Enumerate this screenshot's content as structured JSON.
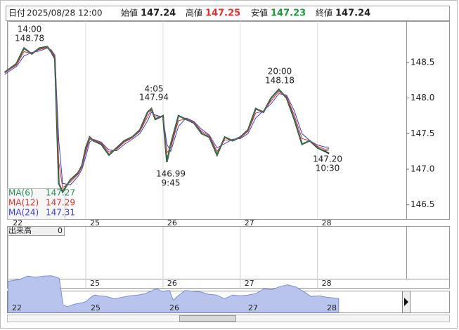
{
  "header": {
    "date_label": "日付",
    "date": "2025/08/28 12:00",
    "open_label": "始値",
    "open": "147.24",
    "high_label": "高値",
    "high": "147.25",
    "low_label": "安値",
    "low": "147.23",
    "close_label": "終値",
    "close": "147.24"
  },
  "chart_data": {
    "type": "line",
    "x": [
      -0.05,
      0,
      0.1,
      0.2,
      0.3,
      0.4,
      0.5,
      0.55,
      0.6,
      0.65,
      0.7,
      0.8,
      0.9,
      0.95,
      1.0,
      1.05,
      1.1,
      1.2,
      1.3,
      1.4,
      1.5,
      1.6,
      1.7,
      1.8,
      1.85,
      1.9,
      2.0,
      2.05,
      2.1,
      2.2,
      2.3,
      2.4,
      2.5,
      2.6,
      2.7,
      2.8,
      2.9,
      3.0,
      3.1,
      3.2,
      3.3,
      3.4,
      3.5,
      3.6,
      3.7,
      3.8,
      3.9,
      4.0,
      4.1,
      4.15
    ],
    "values": [
      148.36,
      148.4,
      148.48,
      148.7,
      148.62,
      148.7,
      148.72,
      148.65,
      148.55,
      146.8,
      146.68,
      146.85,
      146.95,
      147.05,
      147.3,
      147.45,
      147.4,
      147.35,
      147.2,
      147.3,
      147.4,
      147.45,
      147.55,
      147.8,
      147.85,
      147.7,
      147.75,
      147.1,
      147.35,
      147.75,
      147.7,
      147.65,
      147.5,
      147.45,
      147.2,
      147.45,
      147.4,
      147.45,
      147.55,
      147.85,
      147.8,
      148.0,
      148.12,
      148.0,
      147.7,
      147.35,
      147.4,
      147.3,
      147.25,
      147.22
    ],
    "color": "#333333",
    "series": [
      {
        "name": "MA(6)",
        "legend_value": "147.27",
        "color": "#2e8b57",
        "values": [
          148.36,
          148.4,
          148.48,
          148.7,
          148.62,
          148.7,
          148.72,
          148.65,
          148.55,
          146.8,
          146.68,
          146.85,
          146.95,
          147.05,
          147.3,
          147.45,
          147.4,
          147.35,
          147.2,
          147.3,
          147.4,
          147.45,
          147.55,
          147.8,
          147.85,
          147.7,
          147.75,
          147.1,
          147.35,
          147.75,
          147.7,
          147.65,
          147.5,
          147.45,
          147.2,
          147.45,
          147.4,
          147.45,
          147.55,
          147.85,
          147.8,
          148.0,
          148.12,
          148.0,
          147.7,
          147.35,
          147.4,
          147.3,
          147.26,
          147.27
        ]
      },
      {
        "name": "MA(12)",
        "legend_value": "147.29",
        "color": "#e0302c",
        "values": [
          148.35,
          148.39,
          148.46,
          148.65,
          148.63,
          148.68,
          148.71,
          148.67,
          148.58,
          147.1,
          146.74,
          146.82,
          146.93,
          147.03,
          147.24,
          147.42,
          147.41,
          147.37,
          147.24,
          147.28,
          147.38,
          147.44,
          147.53,
          147.74,
          147.83,
          147.73,
          147.74,
          147.23,
          147.3,
          147.68,
          147.71,
          147.66,
          147.53,
          147.47,
          147.25,
          147.41,
          147.41,
          147.44,
          147.53,
          147.79,
          147.81,
          147.96,
          148.09,
          148.02,
          147.76,
          147.43,
          147.4,
          147.32,
          147.28,
          147.29
        ]
      },
      {
        "name": "MA(24)",
        "legend_value": "147.31",
        "color": "#3c3cdc",
        "values": [
          148.33,
          148.37,
          148.44,
          148.59,
          148.64,
          148.66,
          148.7,
          148.68,
          148.6,
          147.4,
          146.8,
          146.78,
          146.9,
          147.0,
          147.18,
          147.38,
          147.42,
          147.38,
          147.27,
          147.26,
          147.35,
          147.42,
          147.5,
          147.68,
          147.8,
          147.76,
          147.73,
          147.35,
          147.25,
          147.6,
          147.72,
          147.67,
          147.56,
          147.48,
          147.3,
          147.36,
          147.42,
          147.43,
          147.5,
          147.72,
          147.82,
          147.92,
          148.06,
          148.04,
          147.82,
          147.5,
          147.4,
          147.34,
          147.31,
          147.31
        ]
      }
    ],
    "annotations": [
      {
        "time": "14:00",
        "price": "148.78"
      },
      {
        "time": "4:05",
        "price": "147.94"
      },
      {
        "time": "20:00",
        "price": "148.18"
      },
      {
        "price": "146.99",
        "time": "9:45"
      },
      {
        "price": "147.20",
        "time": "10:30"
      }
    ],
    "xlim": [
      -0.02,
      5.15
    ],
    "xticks": [
      {
        "value": 0,
        "label": "22"
      },
      {
        "value": 1,
        "label": "25"
      },
      {
        "value": 2,
        "label": "26"
      },
      {
        "value": 3,
        "label": "27"
      },
      {
        "value": 4,
        "label": "28"
      }
    ],
    "ylim": [
      146.3,
      149.08
    ],
    "yticks": [
      146.5,
      {
        "value": 147,
        "label": "147.0"
      },
      147.5,
      {
        "value": 148,
        "label": "148.0"
      },
      148.5
    ],
    "volume_label": "出来高",
    "volume_value": "0"
  }
}
